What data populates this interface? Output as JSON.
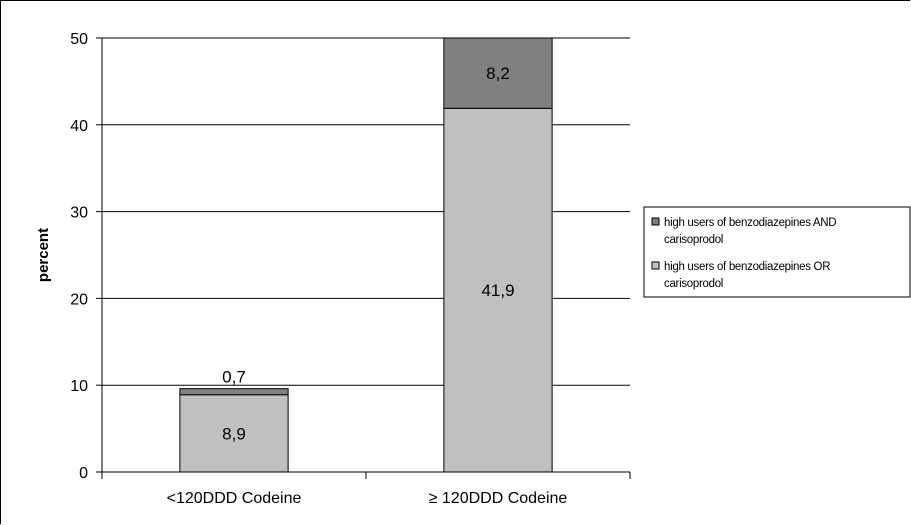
{
  "chart_data": {
    "type": "bar",
    "stacked": true,
    "categories": [
      "<120DDD Codeine",
      "≥ 120DDD Codeine"
    ],
    "series": [
      {
        "name": "high users of benzodiazepines OR carisoprodol",
        "legend_lines": [
          "high users of benzodiazepines OR",
          "carisoprodol"
        ],
        "values": [
          8.9,
          41.9
        ],
        "labels": [
          "8,9",
          "41,9"
        ],
        "color": "#c0c0c0"
      },
      {
        "name": "high users of benzodiazepines AND carisoprodol",
        "legend_lines": [
          "high users of benzodiazepines AND",
          "carisoprodol"
        ],
        "values": [
          0.7,
          8.2
        ],
        "labels": [
          "0,7",
          "8,2"
        ],
        "color": "#808080"
      }
    ],
    "ylabel": "percent",
    "ylim": [
      0,
      50
    ],
    "yticks": [
      0,
      10,
      20,
      30,
      40,
      50
    ],
    "grid": true,
    "legend": "right"
  }
}
